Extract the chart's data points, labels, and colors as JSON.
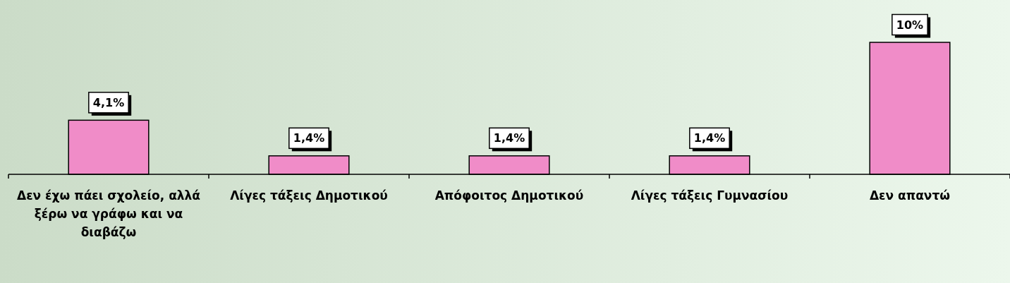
{
  "chart_data": {
    "type": "bar",
    "categories": [
      "Δεν έχω πάει σχολείο, αλλά ξέρω να γράφω και να διαβάζω",
      "Λίγες τάξεις Δημοτικού",
      "Απόφοιτος Δημοτικού",
      "Λίγες τάξεις Γυμνασίου",
      "Δεν απαντώ"
    ],
    "values": [
      4.1,
      1.4,
      1.4,
      1.4,
      10
    ],
    "value_labels": [
      "4,1%",
      "1,4%",
      "1,4%",
      "1,4%",
      "10%"
    ],
    "color": "#f08cc8"
  }
}
